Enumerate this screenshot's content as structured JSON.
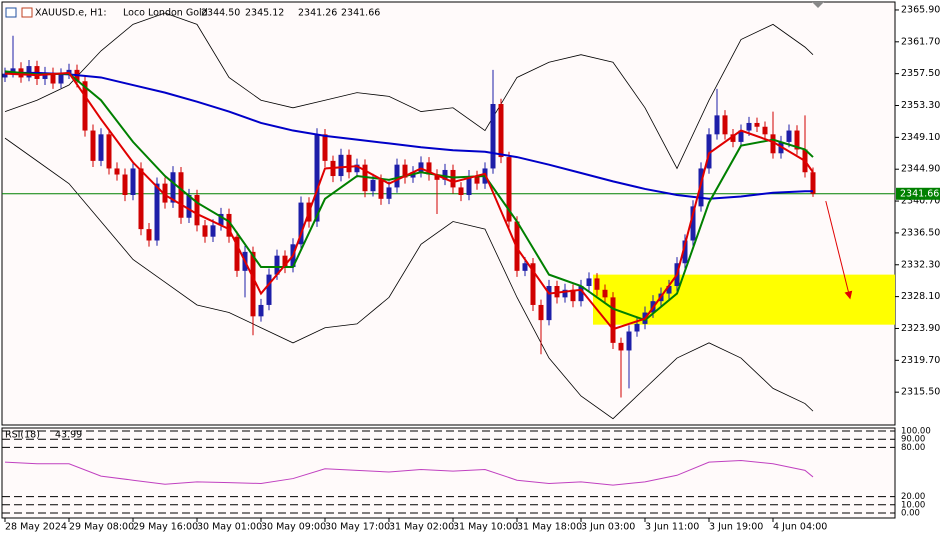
{
  "chart_data": {
    "type": "candlestick",
    "title": "XAUUSD.e, H1:",
    "subtitle": "Loco London Gold",
    "last_bar_labels": [
      "2344.50",
      "2345.12",
      "2341.26",
      "2341.66"
    ],
    "up_color": "#1e1ea8",
    "down_color": "#d00000",
    "price_line_color": "#008000",
    "open": [
      2357.0,
      2357.5,
      2358.2,
      2357.0,
      2358.5,
      2356.8,
      2357.6,
      2356.2,
      2357.4,
      2358.0,
      2356.5,
      2350.0,
      2346.0,
      2349.5,
      2345.0,
      2344.2,
      2341.5,
      2345.0,
      2337.0,
      2335.5,
      2343.0,
      2340.5,
      2344.5,
      2338.5,
      2341.5,
      2337.5,
      2336.0,
      2337.5,
      2339.0,
      2336.0,
      2331.5,
      2334.0,
      2325.5,
      2327.0,
      2331.0,
      2333.5,
      2332.0,
      2335.0,
      2340.5,
      2338.0,
      2349.5,
      2346.0,
      2344.0,
      2346.8,
      2344.5,
      2345.5,
      2342.0,
      2343.5,
      2341.0,
      2342.5,
      2345.5,
      2343.8,
      2344.5,
      2345.8,
      2344.2,
      2343.5,
      2344.8,
      2342.5,
      2341.5,
      2344.0,
      2343.0,
      2345.0,
      2353.5,
      2346.5,
      2338.0,
      2331.5,
      2332.5,
      2327.0,
      2325.0,
      2329.5,
      2328.0,
      2329.0,
      2327.5,
      2329.5,
      2330.5,
      2329.0,
      2328.0,
      2322.0,
      2321.0,
      2323.5,
      2324.5,
      2326.0,
      2327.5,
      2328.5,
      2329.5,
      2332.5,
      2335.5,
      2340.0,
      2345.0,
      2349.5,
      2352.0,
      2349.5,
      2348.5,
      2350.0,
      2351.0,
      2350.5,
      2349.5,
      2347.0,
      2348.5,
      2350.0,
      2347.5,
      2344.5
    ],
    "high": [
      2358.3,
      2362.5,
      2359.0,
      2359.3,
      2359.2,
      2358.4,
      2358.3,
      2358.2,
      2358.8,
      2358.7,
      2357.2,
      2350.8,
      2350.3,
      2350.2,
      2345.8,
      2345.0,
      2345.8,
      2345.8,
      2337.8,
      2343.8,
      2343.8,
      2345.3,
      2345.2,
      2342.3,
      2342.2,
      2338.2,
      2338.3,
      2339.8,
      2339.7,
      2336.7,
      2334.8,
      2334.7,
      2327.8,
      2331.8,
      2334.3,
      2334.2,
      2335.8,
      2341.3,
      2341.2,
      2350.3,
      2350.2,
      2346.7,
      2347.6,
      2347.5,
      2346.3,
      2346.2,
      2344.3,
      2344.2,
      2343.3,
      2346.3,
      2346.2,
      2345.3,
      2346.6,
      2346.5,
      2344.9,
      2345.6,
      2345.5,
      2343.2,
      2344.8,
      2344.7,
      2345.8,
      2358.0,
      2354.2,
      2347.2,
      2338.7,
      2333.3,
      2333.2,
      2327.7,
      2330.3,
      2330.2,
      2329.8,
      2329.7,
      2330.3,
      2331.3,
      2331.2,
      2329.7,
      2328.7,
      2322.7,
      2324.3,
      2325.3,
      2326.8,
      2328.3,
      2329.3,
      2330.3,
      2333.3,
      2336.3,
      2340.8,
      2345.8,
      2350.3,
      2355.5,
      2352.7,
      2350.2,
      2350.8,
      2351.8,
      2351.7,
      2351.2,
      2352.5,
      2349.3,
      2350.8,
      2350.7,
      2352.0,
      2345.12
    ],
    "low": [
      2356.4,
      2357.0,
      2356.3,
      2356.5,
      2356.0,
      2356.0,
      2355.5,
      2355.6,
      2356.8,
      2355.7,
      2349.2,
      2345.2,
      2345.3,
      2344.2,
      2343.4,
      2340.7,
      2340.8,
      2336.2,
      2334.7,
      2334.8,
      2339.7,
      2339.8,
      2337.7,
      2337.8,
      2336.7,
      2335.2,
      2335.3,
      2336.8,
      2335.2,
      2330.7,
      2328.0,
      2323.0,
      2324.8,
      2326.3,
      2330.3,
      2331.2,
      2331.3,
      2334.3,
      2337.2,
      2337.3,
      2345.2,
      2343.2,
      2343.3,
      2343.7,
      2343.8,
      2341.2,
      2341.3,
      2340.2,
      2340.3,
      2341.8,
      2343.0,
      2343.1,
      2343.8,
      2343.4,
      2339.0,
      2342.8,
      2341.7,
      2340.7,
      2340.8,
      2342.2,
      2342.3,
      2344.3,
      2345.7,
      2337.2,
      2330.7,
      2330.8,
      2326.2,
      2320.5,
      2324.3,
      2327.2,
      2327.3,
      2326.7,
      2326.8,
      2328.8,
      2328.2,
      2327.2,
      2321.2,
      2314.8,
      2316.0,
      2322.8,
      2323.8,
      2325.3,
      2326.8,
      2327.8,
      2328.8,
      2331.8,
      2334.8,
      2339.3,
      2344.3,
      2348.8,
      2348.8,
      2347.8,
      2347.8,
      2349.3,
      2349.8,
      2348.8,
      2346.3,
      2346.3,
      2347.8,
      2346.8,
      2343.8,
      2341.26
    ],
    "close": [
      2357.5,
      2358.2,
      2357.0,
      2358.5,
      2356.8,
      2357.6,
      2356.2,
      2357.4,
      2358.0,
      2356.5,
      2350.0,
      2346.0,
      2349.5,
      2345.0,
      2344.2,
      2341.5,
      2345.0,
      2337.0,
      2335.5,
      2343.0,
      2340.5,
      2344.5,
      2338.5,
      2341.5,
      2337.5,
      2336.0,
      2337.5,
      2339.0,
      2336.0,
      2331.5,
      2334.0,
      2325.5,
      2327.0,
      2331.0,
      2333.5,
      2332.0,
      2335.0,
      2340.5,
      2338.0,
      2349.5,
      2346.0,
      2344.0,
      2346.8,
      2344.5,
      2345.5,
      2342.0,
      2343.5,
      2341.0,
      2342.5,
      2345.5,
      2343.8,
      2344.5,
      2345.8,
      2344.2,
      2343.5,
      2344.8,
      2342.5,
      2341.5,
      2344.0,
      2343.0,
      2345.0,
      2353.5,
      2346.5,
      2338.0,
      2331.5,
      2332.5,
      2327.0,
      2325.0,
      2329.5,
      2328.0,
      2329.0,
      2327.5,
      2329.5,
      2330.5,
      2329.0,
      2328.0,
      2322.0,
      2321.0,
      2323.5,
      2324.5,
      2326.0,
      2327.5,
      2328.5,
      2329.5,
      2332.5,
      2335.5,
      2340.0,
      2345.0,
      2349.5,
      2352.0,
      2349.5,
      2348.5,
      2350.0,
      2351.0,
      2350.5,
      2349.5,
      2347.0,
      2348.5,
      2350.0,
      2347.5,
      2344.5,
      2341.66
    ],
    "xlim": [
      -0.375,
      111.25
    ],
    "ylim": [
      2311.17,
      2366.95
    ],
    "yticks": [
      {
        "value": 2365.9,
        "label": "2365.90"
      },
      {
        "value": 2361.7,
        "label": "2361.70"
      },
      {
        "value": 2357.5,
        "label": "2357.50"
      },
      {
        "value": 2353.3,
        "label": "2353.30"
      },
      {
        "value": 2349.1,
        "label": "2349.10"
      },
      {
        "value": 2344.9,
        "label": "2344.90"
      },
      {
        "value": 2340.7,
        "label": "2340.70"
      },
      {
        "value": 2336.5,
        "label": "2336.50"
      },
      {
        "value": 2332.3,
        "label": "2332.30"
      },
      {
        "value": 2328.1,
        "label": "2328.10"
      },
      {
        "value": 2323.9,
        "label": "2323.90"
      },
      {
        "value": 2319.7,
        "label": "2319.70"
      },
      {
        "value": 2315.5,
        "label": "2315.50"
      }
    ],
    "xticks": [
      {
        "value": 0,
        "label": "28 May 2024"
      },
      {
        "value": 8,
        "label": "29 May 08:00"
      },
      {
        "value": 16,
        "label": "29 May 16:00"
      },
      {
        "value": 24,
        "label": "30 May 01:00"
      },
      {
        "value": 32,
        "label": "30 May 09:00"
      },
      {
        "value": 40,
        "label": "30 May 17:00"
      },
      {
        "value": 48,
        "label": "31 May 02:00"
      },
      {
        "value": 56,
        "label": "31 May 10:00"
      },
      {
        "value": 64,
        "label": "31 May 18:00"
      },
      {
        "value": 72,
        "label": "3 Jun 03:00"
      },
      {
        "value": 80,
        "label": "3 Jun 11:00"
      },
      {
        "value": 88,
        "label": "3 Jun 19:00"
      },
      {
        "value": 96,
        "label": "4 Jun 04:00"
      }
    ],
    "line_x": [
      0,
      4,
      8,
      12,
      16,
      20,
      24,
      28,
      32,
      36,
      40,
      44,
      48,
      52,
      56,
      60,
      64,
      68,
      72,
      76,
      80,
      84,
      88,
      92,
      96,
      100,
      101
    ],
    "lines": [
      {
        "color": "#000000",
        "width": 0.8,
        "values": [
          2352.5,
          2354,
          2356,
          2360.5,
          2364,
          2365.5,
          2364,
          2357,
          2354,
          2353,
          2354,
          2355,
          2354.5,
          2352.5,
          2353,
          2350,
          2357,
          2359,
          2360,
          2359,
          2353,
          2345,
          2354,
          2362,
          2364,
          2361,
          2360
        ]
      },
      {
        "color": "#000000",
        "width": 0.8,
        "values": [
          2349,
          2346,
          2343,
          2338,
          2333,
          2330,
          2327,
          2326,
          2324,
          2322,
          2324,
          2324.5,
          2328,
          2335,
          2338,
          2337,
          2328,
          2320,
          2315,
          2312,
          2316,
          2320,
          2322,
          2320,
          2316,
          2314,
          2313
        ]
      },
      {
        "color": "#0000c8",
        "width": 2,
        "values": [
          2357.6,
          2357.6,
          2357.4,
          2357.0,
          2356.0,
          2355.0,
          2353.8,
          2352.5,
          2351.0,
          2350.0,
          2349.3,
          2348.8,
          2348.3,
          2347.8,
          2347.4,
          2347.2,
          2346.5,
          2345.5,
          2344.4,
          2343.3,
          2342.3,
          2341.5,
          2341.0,
          2341.3,
          2341.8,
          2342.0,
          2342.0
        ]
      },
      {
        "color": "#008000",
        "width": 2,
        "values": [
          2357.8,
          2357.4,
          2357.5,
          2354.0,
          2348.5,
          2344.0,
          2340.5,
          2338.0,
          2332.0,
          2332.0,
          2341.0,
          2344.0,
          2343.5,
          2344.5,
          2343.8,
          2344.0,
          2338.0,
          2331.0,
          2329.5,
          2326.5,
          2325.0,
          2328.5,
          2340.5,
          2348.0,
          2348.8,
          2347.5,
          2346.5
        ]
      },
      {
        "color": "#e00000",
        "width": 2,
        "values": [
          2357.5,
          2357.3,
          2357.6,
          2351.5,
          2345.8,
          2341.5,
          2339.0,
          2337.0,
          2328.5,
          2333.5,
          2345.0,
          2345.3,
          2343.0,
          2345.0,
          2343.2,
          2344.3,
          2334.5,
          2328.5,
          2329.0,
          2323.8,
          2325.2,
          2331.0,
          2347.0,
          2350.0,
          2348.5,
          2346.0,
          2344.5
        ]
      }
    ],
    "zone": {
      "color": "#ffff00",
      "start": 73.5,
      "from": 2324.4,
      "to": 2331.0
    },
    "arrow": {
      "color": "#e00000",
      "x": [
        102.6,
        105.6
      ],
      "y": [
        2340.7,
        2328.0
      ]
    },
    "rsi": {
      "title": "RSI(18)",
      "color": "#c040c0",
      "ylim": [
        0,
        100
      ],
      "yticks": [
        {
          "value": 100,
          "label": "100.00"
        },
        {
          "value": 90,
          "label": "90.00"
        },
        {
          "value": 80,
          "label": "80.00"
        },
        {
          "value": 20,
          "label": "20.00"
        },
        {
          "value": 10,
          "label": "10.00"
        },
        {
          "value": 0,
          "label": "0.00"
        }
      ],
      "values": [
        62,
        60,
        60,
        45,
        40,
        35,
        38,
        37,
        36,
        42,
        54,
        52,
        50,
        53,
        51,
        53,
        40,
        36,
        38,
        34,
        38,
        46,
        62,
        64,
        60,
        52,
        43.99
      ]
    }
  }
}
